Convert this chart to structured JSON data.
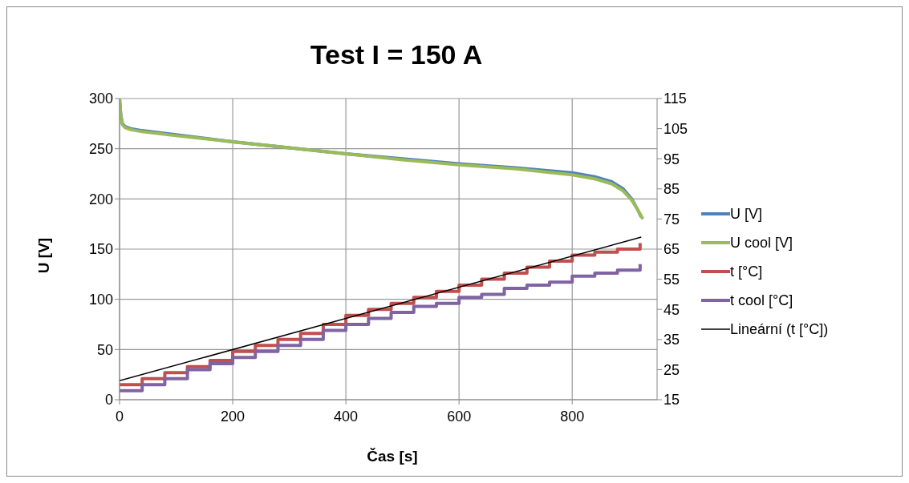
{
  "chart_data": {
    "type": "line",
    "title": "Test I = 150 A",
    "xlabel": "Čas [s]",
    "ylabel": "U [V]",
    "xlim": [
      0,
      950
    ],
    "xticks": [
      0,
      200,
      400,
      600,
      800
    ],
    "ylim": [
      0,
      300
    ],
    "yticks": [
      0,
      50,
      100,
      150,
      200,
      250,
      300
    ],
    "y2lim": [
      15,
      115
    ],
    "y2ticks": [
      15,
      25,
      35,
      45,
      55,
      65,
      75,
      85,
      95,
      105,
      115
    ],
    "grid": true,
    "legend": "right",
    "marker": "none",
    "line_style": "solid",
    "series": [
      {
        "name": "U [V]",
        "color": "#4f81bd",
        "x": [
          0,
          2,
          5,
          10,
          20,
          40,
          100,
          200,
          300,
          400,
          500,
          600,
          700,
          800,
          840,
          870,
          890,
          905,
          915,
          922
        ],
        "values": [
          300,
          285,
          275,
          272,
          270,
          268,
          264,
          257,
          251,
          245,
          240,
          235,
          231,
          226,
          222,
          217,
          210,
          200,
          190,
          182
        ]
      },
      {
        "name": "U cool [V]",
        "color": "#9bbb59",
        "x": [
          0,
          2,
          5,
          10,
          20,
          40,
          100,
          200,
          300,
          400,
          500,
          600,
          700,
          800,
          840,
          870,
          890,
          905,
          915,
          925
        ],
        "values": [
          300,
          284,
          274,
          271,
          269,
          267,
          263,
          257,
          251,
          245,
          239,
          234,
          230,
          224,
          220,
          215,
          208,
          199,
          190,
          180
        ]
      },
      {
        "name": "t [°C]",
        "type": "step",
        "axis": "y2",
        "color": "#c0504d",
        "x": [
          0,
          40,
          80,
          120,
          160,
          200,
          240,
          280,
          320,
          360,
          400,
          440,
          480,
          520,
          560,
          600,
          640,
          680,
          720,
          760,
          800,
          840,
          880,
          920
        ],
        "values": [
          20,
          22,
          24,
          26,
          28,
          31,
          33,
          35,
          37,
          40,
          43,
          45,
          47,
          49,
          51,
          53,
          55,
          57,
          59,
          61,
          63,
          64,
          65,
          67
        ]
      },
      {
        "name": "t cool [°C]",
        "type": "step",
        "axis": "y2",
        "color": "#8064a2",
        "x": [
          0,
          40,
          80,
          120,
          160,
          200,
          240,
          280,
          320,
          360,
          400,
          440,
          480,
          520,
          560,
          600,
          640,
          680,
          720,
          760,
          800,
          840,
          880,
          920
        ],
        "values": [
          18,
          20,
          22,
          25,
          27,
          29,
          31,
          33,
          35,
          38,
          40,
          42,
          44,
          46,
          47,
          49,
          50,
          52,
          53,
          54,
          56,
          57,
          58,
          60
        ]
      },
      {
        "name": "Lineární (t [°C])",
        "axis": "y2",
        "color": "#000000",
        "x": [
          0,
          922
        ],
        "values": [
          21.3,
          69
        ]
      }
    ]
  }
}
